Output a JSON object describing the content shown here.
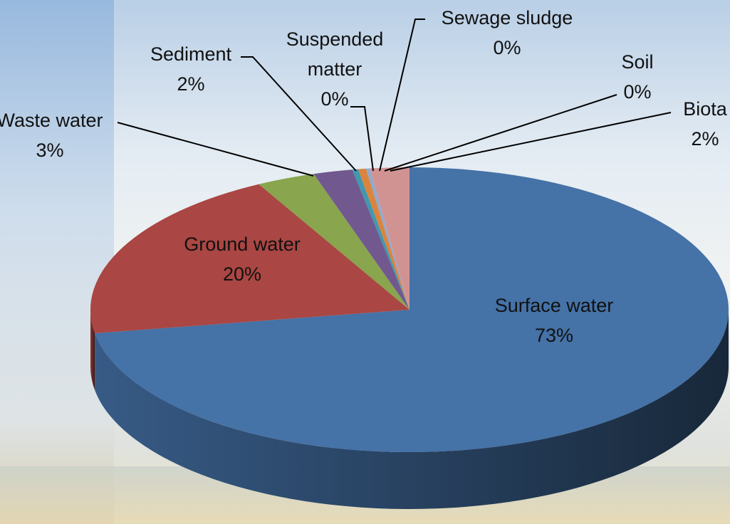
{
  "chart_data": {
    "type": "pie3d",
    "categories": [
      "Surface water",
      "Ground water",
      "Waste water",
      "Sediment",
      "Suspended matter",
      "Sewage sludge",
      "Soil",
      "Biota"
    ],
    "values": [
      73,
      20,
      3,
      2,
      0.3,
      0.4,
      0.2,
      2
    ],
    "value_labels": [
      "73%",
      "20%",
      "3%",
      "2%",
      "0%",
      "0%",
      "0%",
      "2%"
    ],
    "colors": [
      "#4572a7",
      "#aa4643",
      "#89a54e",
      "#71588f",
      "#4198af",
      "#db843d",
      "#93a9cf",
      "#d19392"
    ]
  }
}
